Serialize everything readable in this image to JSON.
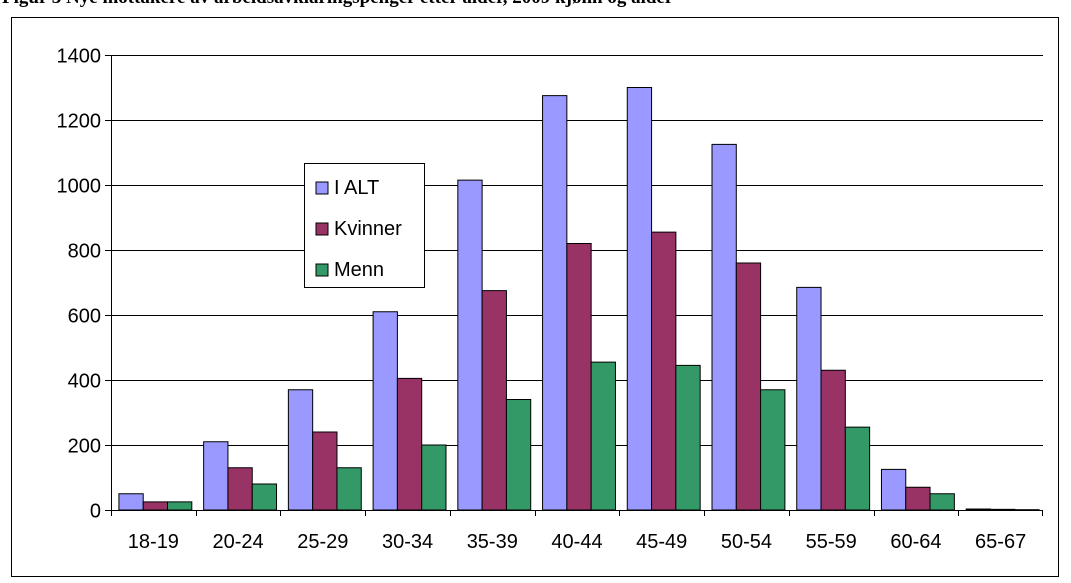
{
  "page_title": "Figur 3 Nye mottakere av arbeidsavklaringspenger etter alder, 2009 kjønn og alder",
  "chart_data": {
    "type": "bar",
    "title": "",
    "xlabel": "",
    "ylabel": "",
    "categories": [
      "18-19",
      "20-24",
      "25-29",
      "30-34",
      "35-39",
      "40-44",
      "45-49",
      "50-54",
      "55-59",
      "60-64",
      "65-67"
    ],
    "series": [
      {
        "name": "I ALT",
        "color": "#9999ff",
        "values": [
          50,
          210,
          370,
          610,
          1015,
          1275,
          1300,
          1125,
          685,
          125,
          3
        ]
      },
      {
        "name": "Kvinner",
        "color": "#993366",
        "values": [
          25,
          130,
          240,
          405,
          675,
          820,
          855,
          760,
          430,
          70,
          2
        ]
      },
      {
        "name": "Menn",
        "color": "#339966",
        "values": [
          25,
          80,
          130,
          200,
          340,
          455,
          445,
          370,
          255,
          50,
          1
        ]
      }
    ],
    "ylim": [
      0,
      1400
    ],
    "yticks": [
      0,
      200,
      400,
      600,
      800,
      1000,
      1200,
      1400
    ],
    "grid": true,
    "legend_position": "inside-upper-left"
  }
}
